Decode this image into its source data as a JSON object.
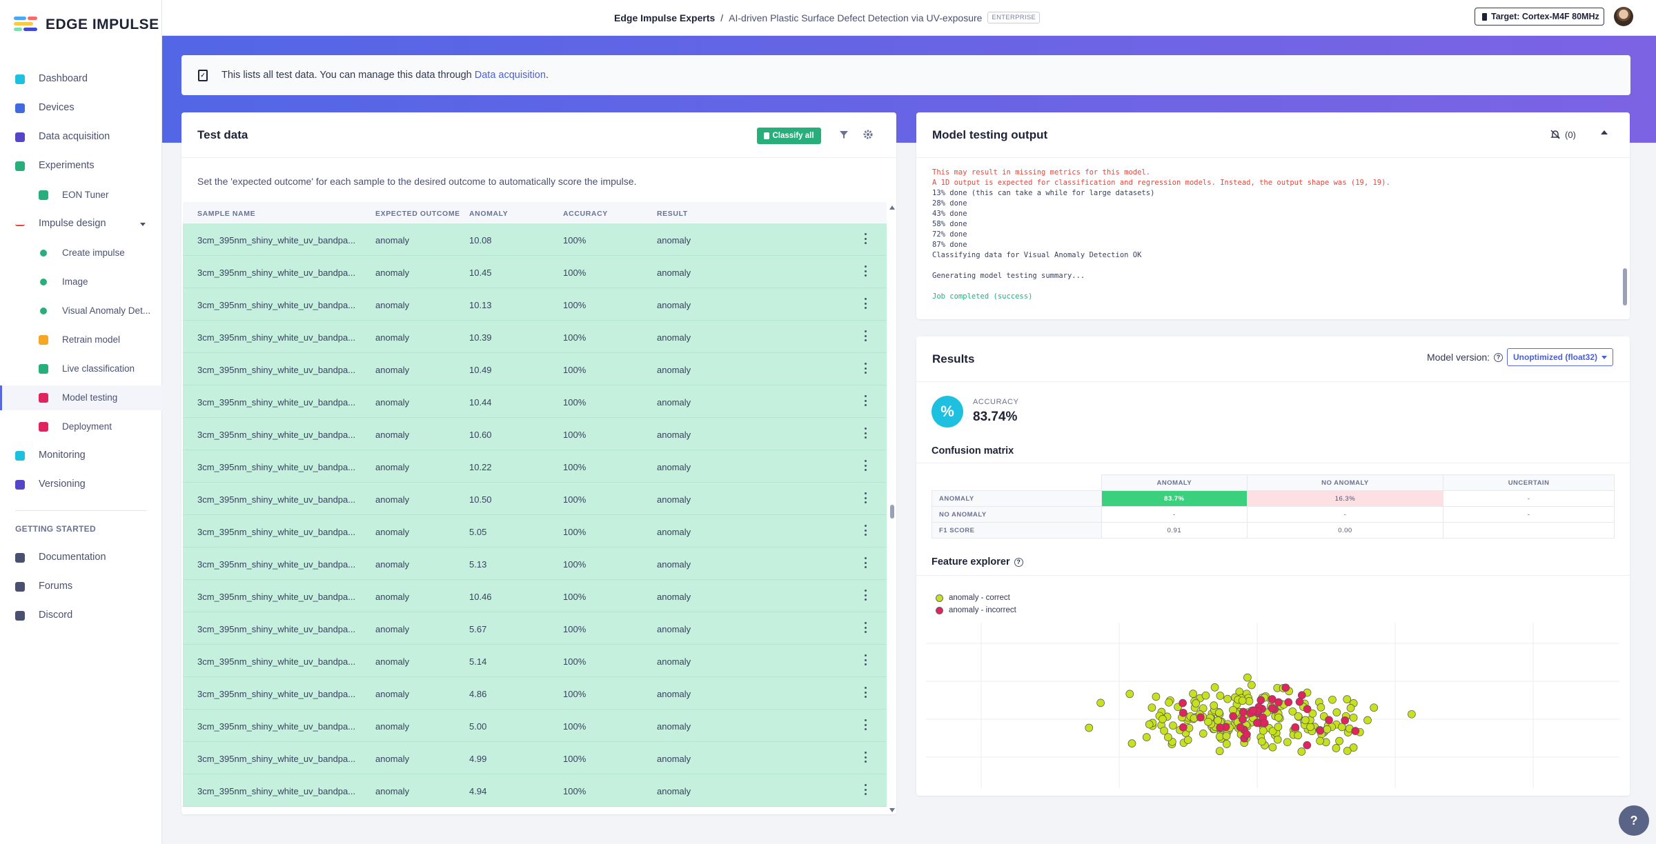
{
  "app": {
    "logo_text": "EDGE IMPULSE"
  },
  "header": {
    "org": "Edge Impulse Experts",
    "separator": "/",
    "project": "AI-driven Plastic Surface Defect Detection via UV-exposure",
    "badge": "ENTERPRISE",
    "target": "Target: Cortex-M4F 80MHz"
  },
  "sidebar": {
    "items": [
      {
        "label": "Dashboard",
        "icon": "monitor-icon"
      },
      {
        "label": "Devices",
        "icon": "device-icon"
      },
      {
        "label": "Data acquisition",
        "icon": "database-icon"
      },
      {
        "label": "Experiments",
        "icon": "grid-icon"
      },
      {
        "label": "EON Tuner",
        "icon": "tuner-icon"
      },
      {
        "label": "Impulse design",
        "icon": "pulse-icon"
      },
      {
        "label": "Create impulse",
        "icon": "dot-icon"
      },
      {
        "label": "Image",
        "icon": "dot-icon"
      },
      {
        "label": "Visual Anomaly Det...",
        "icon": "dot-icon"
      },
      {
        "label": "Retrain model",
        "icon": "shuffle-icon"
      },
      {
        "label": "Live classification",
        "icon": "live-icon"
      },
      {
        "label": "Model testing",
        "icon": "clipboard-icon"
      },
      {
        "label": "Deployment",
        "icon": "box-icon"
      },
      {
        "label": "Monitoring",
        "icon": "binoculars-icon"
      },
      {
        "label": "Versioning",
        "icon": "branch-icon"
      }
    ],
    "getting_started_title": "GETTING STARTED",
    "getting_started": [
      {
        "label": "Documentation",
        "icon": "doc-icon"
      },
      {
        "label": "Forums",
        "icon": "forum-icon"
      },
      {
        "label": "Discord",
        "icon": "discord-icon"
      }
    ]
  },
  "info": {
    "text": "This lists all test data. You can manage this data through",
    "link": "Data acquisition",
    "suffix": "."
  },
  "test_data": {
    "title": "Test data",
    "classify_all": "Classify all",
    "description": "Set the 'expected outcome' for each sample to the desired outcome to automatically score the impulse.",
    "columns": [
      "SAMPLE NAME",
      "EXPECTED OUTCOME",
      "ANOMALY",
      "ACCURACY",
      "RESULT"
    ],
    "rows": [
      [
        "3cm_395nm_shiny_white_uv_bandpa...",
        "anomaly",
        "10.08",
        "100%",
        "anomaly"
      ],
      [
        "3cm_395nm_shiny_white_uv_bandpa...",
        "anomaly",
        "10.45",
        "100%",
        "anomaly"
      ],
      [
        "3cm_395nm_shiny_white_uv_bandpa...",
        "anomaly",
        "10.13",
        "100%",
        "anomaly"
      ],
      [
        "3cm_395nm_shiny_white_uv_bandpa...",
        "anomaly",
        "10.39",
        "100%",
        "anomaly"
      ],
      [
        "3cm_395nm_shiny_white_uv_bandpa...",
        "anomaly",
        "10.49",
        "100%",
        "anomaly"
      ],
      [
        "3cm_395nm_shiny_white_uv_bandpa...",
        "anomaly",
        "10.44",
        "100%",
        "anomaly"
      ],
      [
        "3cm_395nm_shiny_white_uv_bandpa...",
        "anomaly",
        "10.60",
        "100%",
        "anomaly"
      ],
      [
        "3cm_395nm_shiny_white_uv_bandpa...",
        "anomaly",
        "10.22",
        "100%",
        "anomaly"
      ],
      [
        "3cm_395nm_shiny_white_uv_bandpa...",
        "anomaly",
        "10.50",
        "100%",
        "anomaly"
      ],
      [
        "3cm_395nm_shiny_white_uv_bandpa...",
        "anomaly",
        "5.05",
        "100%",
        "anomaly"
      ],
      [
        "3cm_395nm_shiny_white_uv_bandpa...",
        "anomaly",
        "5.13",
        "100%",
        "anomaly"
      ],
      [
        "3cm_395nm_shiny_white_uv_bandpa...",
        "anomaly",
        "10.46",
        "100%",
        "anomaly"
      ],
      [
        "3cm_395nm_shiny_white_uv_bandpa...",
        "anomaly",
        "5.67",
        "100%",
        "anomaly"
      ],
      [
        "3cm_395nm_shiny_white_uv_bandpa...",
        "anomaly",
        "5.14",
        "100%",
        "anomaly"
      ],
      [
        "3cm_395nm_shiny_white_uv_bandpa...",
        "anomaly",
        "4.86",
        "100%",
        "anomaly"
      ],
      [
        "3cm_395nm_shiny_white_uv_bandpa...",
        "anomaly",
        "5.00",
        "100%",
        "anomaly"
      ],
      [
        "3cm_395nm_shiny_white_uv_bandpa...",
        "anomaly",
        "4.99",
        "100%",
        "anomaly"
      ],
      [
        "3cm_395nm_shiny_white_uv_bandpa...",
        "anomaly",
        "4.94",
        "100%",
        "anomaly"
      ]
    ],
    "row_color": "#c4f0dd"
  },
  "output": {
    "title": "Model testing output",
    "notifications": "(0)",
    "log": [
      {
        "text": "This may result in missing metrics for this model.",
        "style": "red"
      },
      {
        "text": "A 1D output is expected for classification and regression models. Instead, the output shape was (19, 19).",
        "style": "red"
      },
      {
        "text": "13% done (this can take a while for large datasets)",
        "style": ""
      },
      {
        "text": "28% done",
        "style": ""
      },
      {
        "text": "43% done",
        "style": ""
      },
      {
        "text": "58% done",
        "style": ""
      },
      {
        "text": "72% done",
        "style": ""
      },
      {
        "text": "87% done",
        "style": ""
      },
      {
        "text": "Classifying data for Visual Anomaly Detection OK",
        "style": ""
      },
      {
        "text": "",
        "style": ""
      },
      {
        "text": "Generating model testing summary...",
        "style": ""
      },
      {
        "text": "",
        "style": ""
      },
      {
        "text": "Job completed (success)",
        "style": "grn"
      }
    ]
  },
  "results": {
    "title": "Results",
    "model_version_label": "Model version:",
    "model_version": "Unoptimized (float32)",
    "accuracy_label": "ACCURACY",
    "accuracy": "83.74%",
    "confusion_title": "Confusion matrix",
    "confusion": {
      "cols": [
        "ANOMALY",
        "NO ANOMALY",
        "UNCERTAIN"
      ],
      "rows": [
        {
          "label": "ANOMALY",
          "cells": [
            "83.7%",
            "16.3%",
            "-"
          ]
        },
        {
          "label": "NO ANOMALY",
          "cells": [
            "-",
            "-",
            "-"
          ]
        },
        {
          "label": "F1 SCORE",
          "cells": [
            "0.91",
            "0.00",
            ""
          ]
        }
      ]
    },
    "feature_title": "Feature explorer",
    "legend": [
      {
        "label": "anomaly - correct",
        "color": "#c8e11e"
      },
      {
        "label": "anomaly - incorrect",
        "color": "#e0245e"
      }
    ]
  },
  "chart_data": {
    "type": "scatter",
    "series": [
      {
        "name": "anomaly - correct",
        "color": "#c8e11e"
      },
      {
        "name": "anomaly - incorrect",
        "color": "#e0245e"
      }
    ],
    "correct_count": 201,
    "incorrect_count": 39,
    "grid": true
  }
}
